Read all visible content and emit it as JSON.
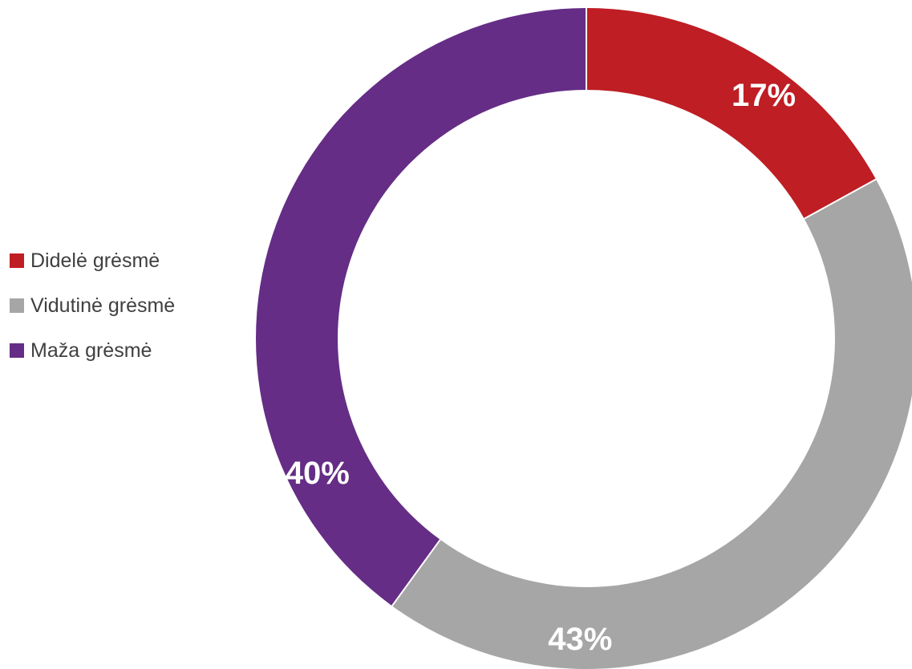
{
  "chart_data": {
    "type": "pie",
    "variant": "donut",
    "start_angle": "top",
    "direction": "clockwise",
    "legend_position": "left",
    "slices": [
      {
        "label": "Didelė grėsmė",
        "value": 17,
        "display": "17%",
        "color": "#BE1E24"
      },
      {
        "label": "Vidutinė grėsmė",
        "value": 43,
        "display": "43%",
        "color": "#A6A6A6"
      },
      {
        "label": "Maža grėsmė",
        "value": 40,
        "display": "40%",
        "color": "#652D86"
      }
    ]
  }
}
